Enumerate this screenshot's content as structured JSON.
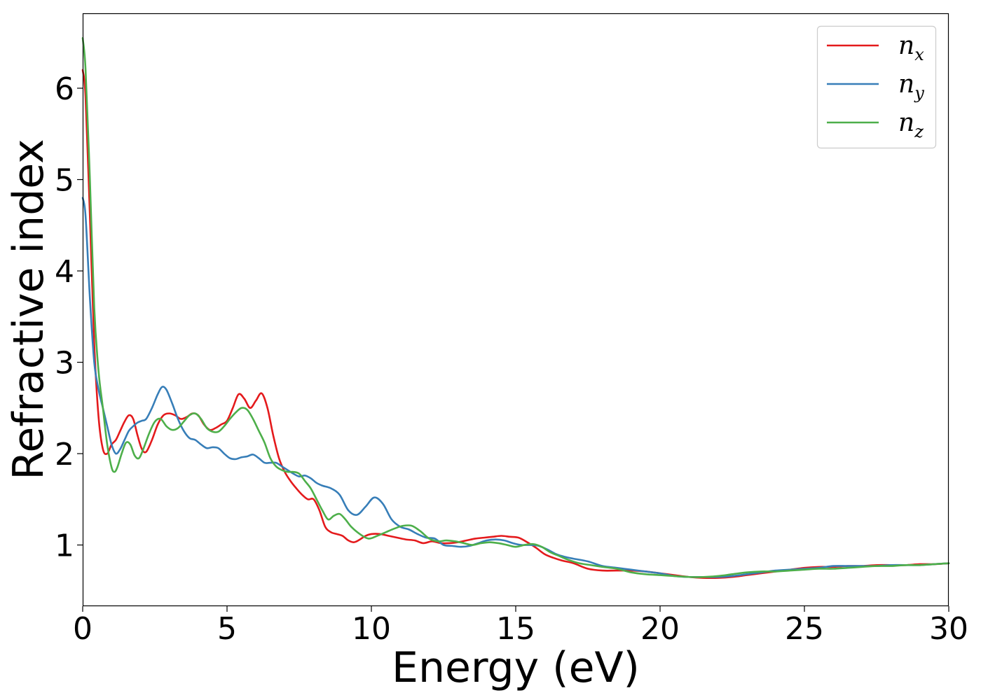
{
  "chart_data": {
    "type": "line",
    "title": "",
    "xlabel": "Energy (eV)",
    "ylabel": "Refractive index",
    "xlim": [
      0,
      30
    ],
    "ylim": [
      0.33,
      6.82
    ],
    "xticks": [
      "0",
      "5",
      "10",
      "15",
      "20",
      "25",
      "30"
    ],
    "yticks": [
      "1",
      "2",
      "3",
      "4",
      "5",
      "6"
    ],
    "grid": false,
    "legend_position": "top-right",
    "series": [
      {
        "name": "n_x",
        "label_base": "n",
        "label_sub": "x",
        "color": "#e41a1c",
        "x": [
          0,
          0.1,
          0.25,
          0.4,
          0.55,
          0.7,
          0.85,
          1.0,
          1.15,
          1.3,
          1.45,
          1.6,
          1.75,
          1.9,
          2.05,
          2.2,
          2.4,
          2.6,
          2.8,
          3.0,
          3.2,
          3.4,
          3.6,
          3.8,
          4.0,
          4.2,
          4.4,
          4.6,
          4.8,
          5.0,
          5.2,
          5.4,
          5.6,
          5.8,
          6.0,
          6.2,
          6.4,
          6.6,
          6.8,
          7.0,
          7.2,
          7.4,
          7.6,
          7.8,
          8.0,
          8.2,
          8.4,
          8.6,
          8.8,
          9.0,
          9.2,
          9.4,
          9.6,
          9.8,
          10.0,
          10.3,
          10.6,
          10.9,
          11.2,
          11.5,
          11.8,
          12.1,
          12.4,
          12.7,
          13.0,
          13.3,
          13.6,
          13.9,
          14.2,
          14.5,
          14.8,
          15.1,
          15.4,
          15.7,
          16.0,
          16.3,
          16.6,
          17.0,
          17.5,
          18.0,
          18.5,
          19.0,
          19.5,
          20.0,
          20.5,
          21.0,
          21.5,
          22.0,
          22.5,
          23.0,
          23.5,
          24.0,
          24.5,
          25.0,
          25.5,
          26.0,
          26.5,
          27.0,
          27.5,
          28.0,
          28.5,
          29.0,
          29.5,
          30.0
        ],
        "values": [
          6.2,
          5.9,
          4.6,
          3.2,
          2.4,
          2.05,
          2.0,
          2.1,
          2.15,
          2.25,
          2.35,
          2.42,
          2.38,
          2.2,
          2.05,
          2.02,
          2.15,
          2.32,
          2.42,
          2.44,
          2.42,
          2.38,
          2.4,
          2.44,
          2.42,
          2.32,
          2.26,
          2.28,
          2.32,
          2.36,
          2.5,
          2.65,
          2.6,
          2.5,
          2.58,
          2.66,
          2.5,
          2.2,
          1.95,
          1.8,
          1.7,
          1.62,
          1.55,
          1.5,
          1.5,
          1.38,
          1.2,
          1.14,
          1.12,
          1.1,
          1.05,
          1.03,
          1.06,
          1.1,
          1.12,
          1.12,
          1.1,
          1.08,
          1.06,
          1.05,
          1.02,
          1.04,
          1.02,
          1.02,
          1.03,
          1.05,
          1.07,
          1.08,
          1.09,
          1.1,
          1.09,
          1.08,
          1.03,
          0.97,
          0.9,
          0.86,
          0.83,
          0.8,
          0.74,
          0.72,
          0.72,
          0.72,
          0.71,
          0.69,
          0.67,
          0.65,
          0.64,
          0.64,
          0.65,
          0.67,
          0.69,
          0.71,
          0.73,
          0.75,
          0.76,
          0.76,
          0.77,
          0.77,
          0.78,
          0.78,
          0.78,
          0.79,
          0.79,
          0.8
        ]
      },
      {
        "name": "n_y",
        "label_base": "n",
        "label_sub": "y",
        "color": "#377eb8",
        "x": [
          0,
          0.1,
          0.25,
          0.4,
          0.55,
          0.7,
          0.85,
          1.0,
          1.15,
          1.3,
          1.45,
          1.6,
          1.75,
          1.9,
          2.05,
          2.2,
          2.4,
          2.6,
          2.75,
          2.9,
          3.1,
          3.3,
          3.5,
          3.7,
          3.9,
          4.1,
          4.3,
          4.5,
          4.7,
          4.9,
          5.1,
          5.3,
          5.5,
          5.7,
          5.9,
          6.1,
          6.3,
          6.5,
          6.7,
          6.9,
          7.1,
          7.3,
          7.5,
          7.7,
          7.9,
          8.1,
          8.3,
          8.6,
          8.9,
          9.2,
          9.5,
          9.8,
          10.1,
          10.4,
          10.7,
          11.0,
          11.3,
          11.6,
          11.9,
          12.2,
          12.5,
          12.8,
          13.1,
          13.4,
          13.7,
          14.0,
          14.3,
          14.6,
          14.9,
          15.2,
          15.5,
          15.8,
          16.1,
          16.4,
          16.7,
          17.0,
          17.5,
          18.0,
          18.5,
          19.0,
          19.5,
          20.0,
          20.5,
          21.0,
          21.5,
          22.0,
          22.5,
          23.0,
          23.5,
          24.0,
          24.5,
          25.0,
          25.5,
          26.0,
          26.5,
          27.0,
          27.5,
          28.0,
          28.5,
          29.0,
          29.5,
          30.0
        ],
        "values": [
          4.8,
          4.6,
          3.7,
          3.0,
          2.7,
          2.5,
          2.3,
          2.1,
          2.0,
          2.05,
          2.15,
          2.25,
          2.3,
          2.34,
          2.36,
          2.38,
          2.5,
          2.65,
          2.73,
          2.7,
          2.55,
          2.38,
          2.25,
          2.17,
          2.15,
          2.1,
          2.06,
          2.07,
          2.06,
          2.0,
          1.95,
          1.94,
          1.96,
          1.97,
          1.99,
          1.95,
          1.9,
          1.9,
          1.9,
          1.86,
          1.82,
          1.78,
          1.75,
          1.76,
          1.73,
          1.68,
          1.65,
          1.62,
          1.55,
          1.38,
          1.33,
          1.42,
          1.52,
          1.45,
          1.28,
          1.2,
          1.17,
          1.12,
          1.08,
          1.07,
          1.0,
          0.99,
          0.98,
          0.99,
          1.02,
          1.05,
          1.06,
          1.05,
          1.02,
          1.0,
          1.0,
          0.99,
          0.95,
          0.9,
          0.87,
          0.85,
          0.82,
          0.77,
          0.75,
          0.73,
          0.71,
          0.69,
          0.66,
          0.65,
          0.65,
          0.65,
          0.66,
          0.68,
          0.7,
          0.72,
          0.73,
          0.74,
          0.75,
          0.77,
          0.77,
          0.77,
          0.77,
          0.78,
          0.78,
          0.78,
          0.79,
          0.8
        ]
      },
      {
        "name": "n_z",
        "label_base": "n",
        "label_sub": "z",
        "color": "#4daf4a",
        "x": [
          0,
          0.1,
          0.25,
          0.4,
          0.55,
          0.7,
          0.85,
          1.0,
          1.1,
          1.2,
          1.35,
          1.5,
          1.65,
          1.8,
          1.95,
          2.1,
          2.3,
          2.5,
          2.7,
          2.9,
          3.1,
          3.3,
          3.5,
          3.7,
          3.9,
          4.1,
          4.3,
          4.5,
          4.7,
          4.9,
          5.1,
          5.3,
          5.5,
          5.7,
          5.9,
          6.1,
          6.3,
          6.5,
          6.7,
          6.9,
          7.1,
          7.3,
          7.5,
          7.7,
          7.9,
          8.1,
          8.3,
          8.5,
          8.7,
          8.9,
          9.1,
          9.3,
          9.6,
          9.9,
          10.2,
          10.5,
          10.8,
          11.1,
          11.4,
          11.7,
          12.0,
          12.3,
          12.6,
          12.9,
          13.2,
          13.5,
          13.8,
          14.1,
          14.4,
          14.7,
          15.0,
          15.3,
          15.6,
          15.9,
          16.2,
          16.5,
          16.8,
          17.2,
          17.6,
          18.0,
          18.5,
          19.0,
          19.5,
          20.0,
          20.5,
          21.0,
          21.5,
          22.0,
          22.5,
          23.0,
          23.5,
          24.0,
          24.5,
          25.0,
          25.5,
          26.0,
          26.5,
          27.0,
          27.5,
          28.0,
          28.5,
          29.0,
          29.5,
          30.0
        ],
        "values": [
          6.55,
          6.2,
          5.0,
          3.6,
          2.9,
          2.5,
          2.1,
          1.85,
          1.8,
          1.85,
          2.0,
          2.12,
          2.1,
          1.98,
          1.95,
          2.05,
          2.22,
          2.35,
          2.38,
          2.3,
          2.26,
          2.28,
          2.35,
          2.42,
          2.44,
          2.38,
          2.28,
          2.24,
          2.24,
          2.3,
          2.38,
          2.45,
          2.5,
          2.48,
          2.38,
          2.25,
          2.12,
          1.95,
          1.86,
          1.82,
          1.8,
          1.8,
          1.78,
          1.7,
          1.62,
          1.5,
          1.38,
          1.28,
          1.32,
          1.34,
          1.28,
          1.2,
          1.12,
          1.07,
          1.1,
          1.14,
          1.18,
          1.21,
          1.21,
          1.15,
          1.07,
          1.04,
          1.05,
          1.04,
          1.02,
          1.0,
          1.02,
          1.03,
          1.02,
          1.0,
          0.98,
          1.0,
          1.01,
          0.98,
          0.92,
          0.88,
          0.84,
          0.8,
          0.78,
          0.76,
          0.74,
          0.7,
          0.68,
          0.67,
          0.66,
          0.65,
          0.65,
          0.66,
          0.68,
          0.7,
          0.71,
          0.71,
          0.72,
          0.73,
          0.74,
          0.74,
          0.75,
          0.76,
          0.77,
          0.77,
          0.78,
          0.78,
          0.79,
          0.8
        ]
      }
    ]
  }
}
